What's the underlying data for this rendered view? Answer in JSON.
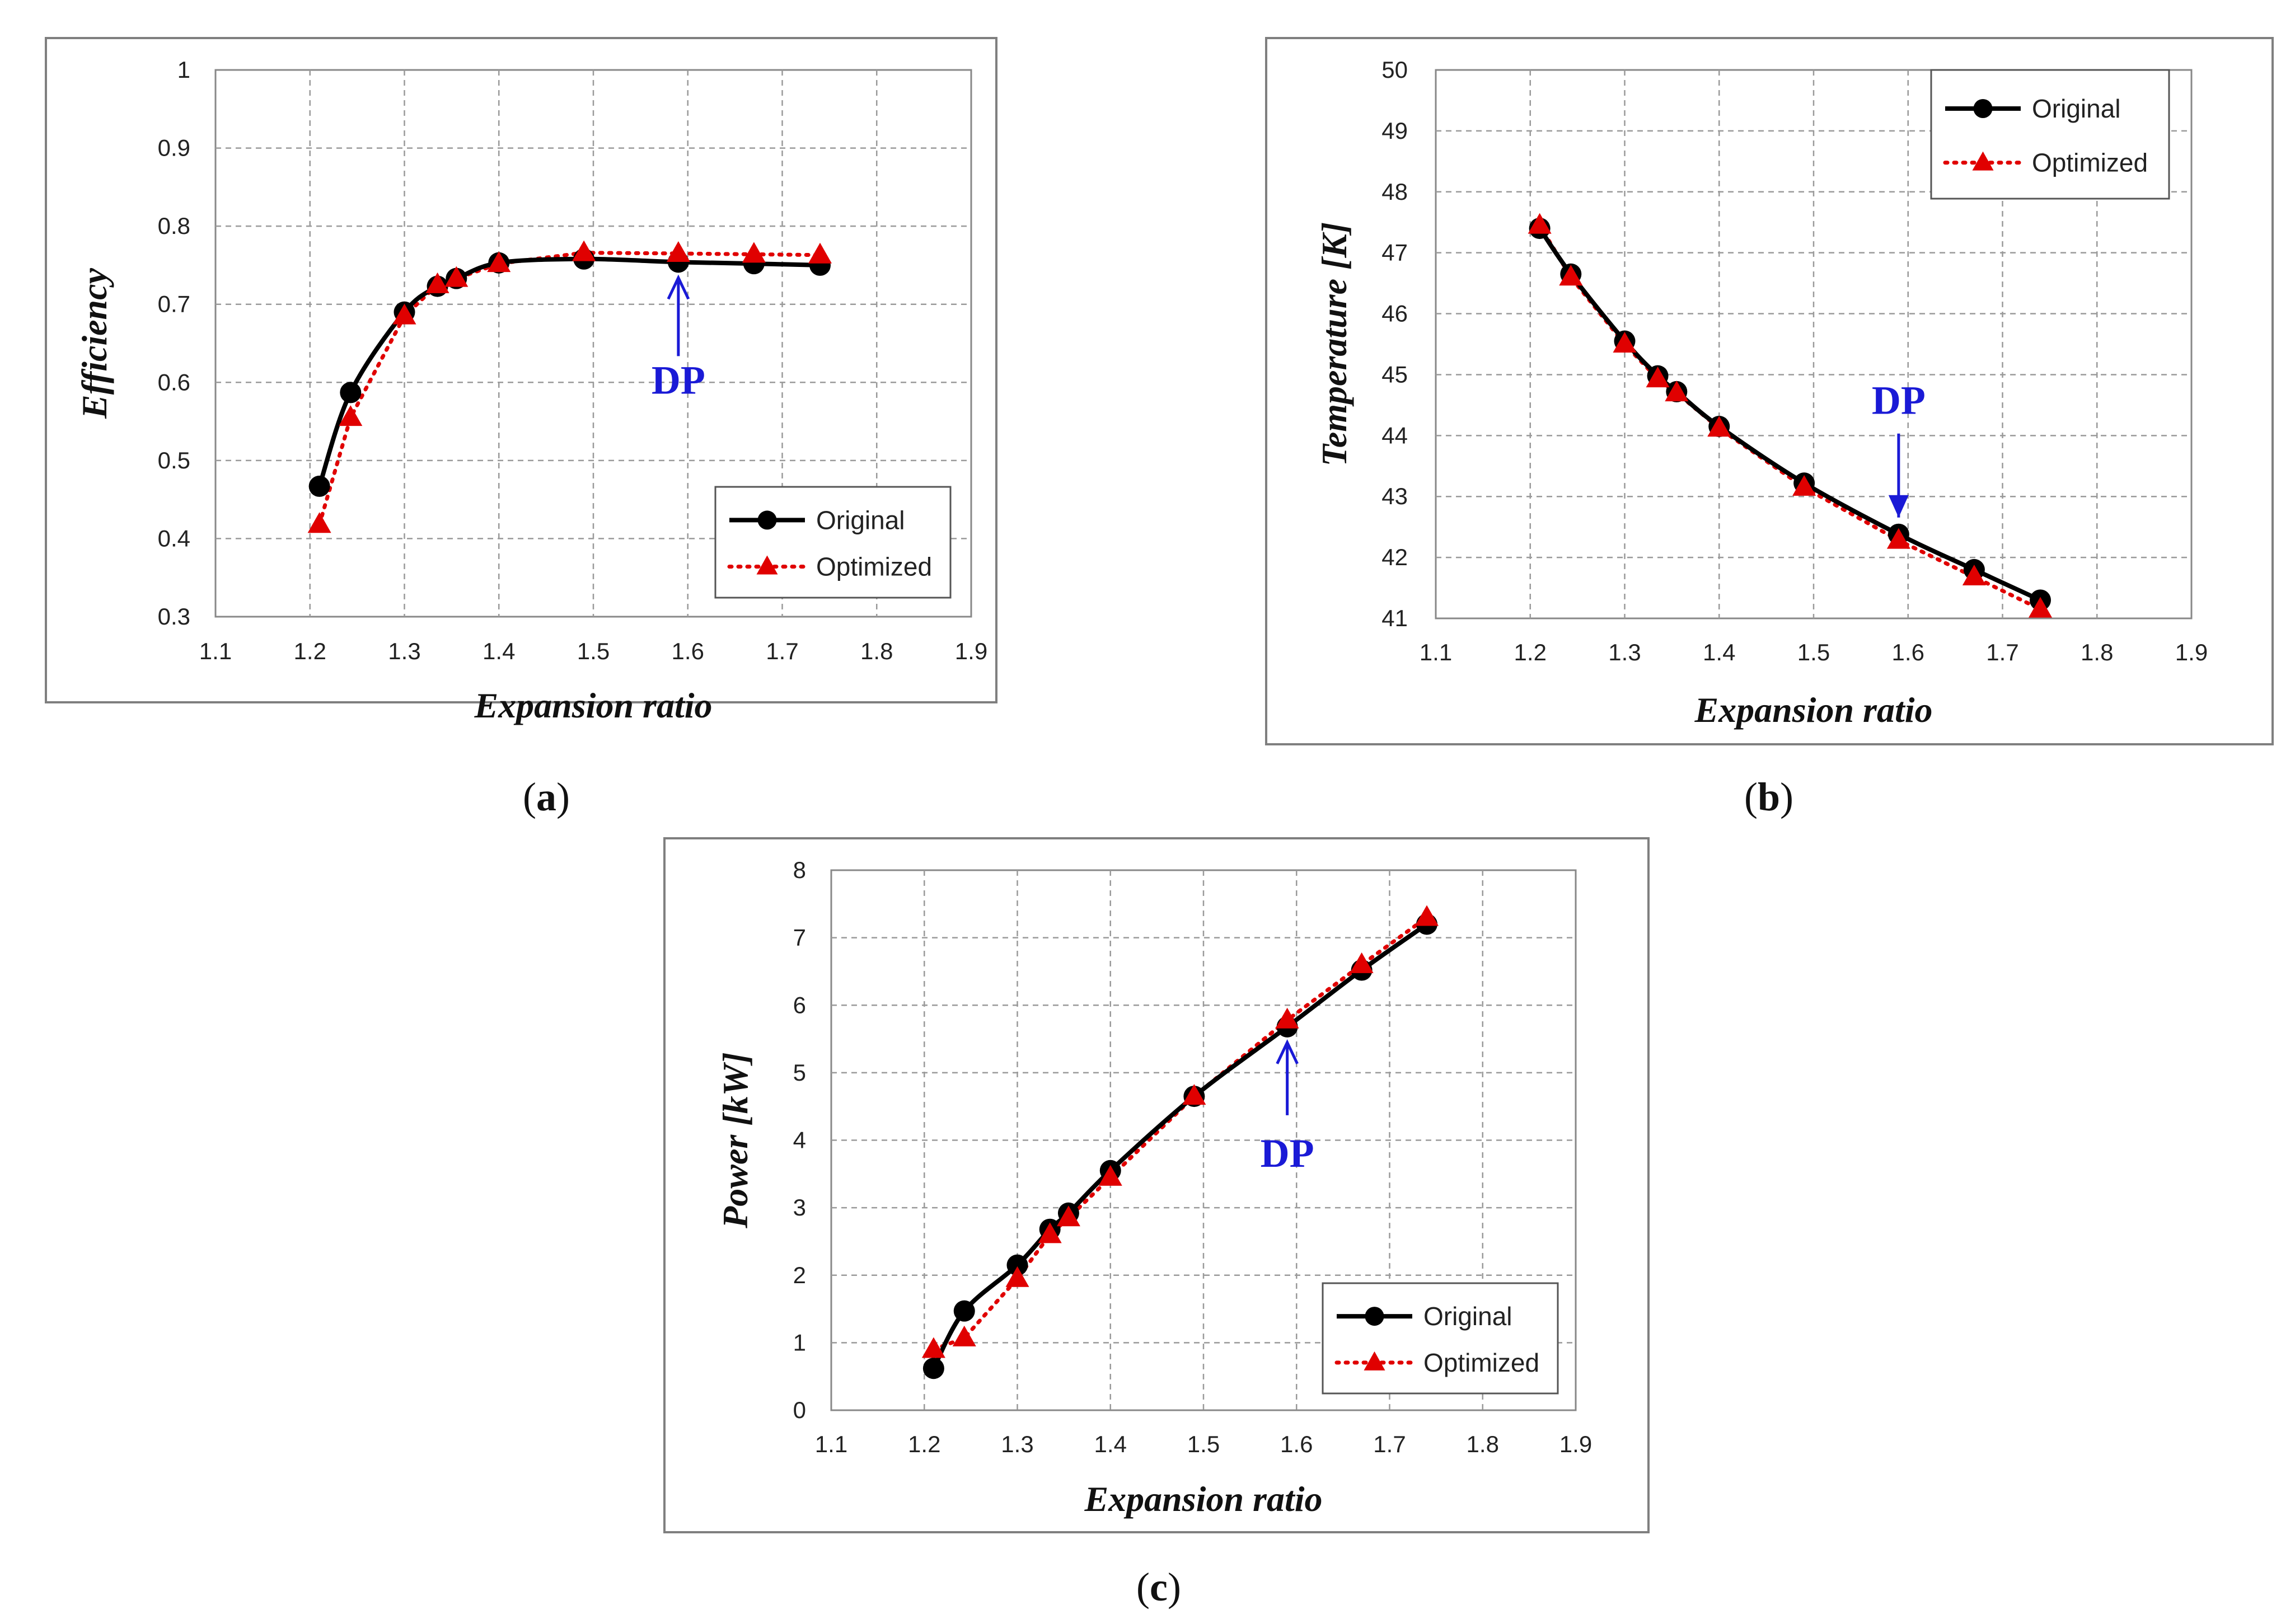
{
  "colors": {
    "original": "#000000",
    "optimized": "#e00000",
    "dp": "#1a1ad6",
    "grid": "#9a9a9a",
    "frame": "#7f7f7f"
  },
  "chart_data": [
    {
      "type": "line",
      "panel_label": "a",
      "xlabel": "Expansion ratio",
      "ylabel": "Efficiency",
      "xlim": [
        1.1,
        1.9
      ],
      "ylim": [
        0.3,
        1
      ],
      "x_ticks": [
        "1.1",
        "1.2",
        "1.3",
        "1.4",
        "1.5",
        "1.6",
        "1.7",
        "1.8",
        "1.9"
      ],
      "y_ticks": [
        "0.3",
        "0.4",
        "0.5",
        "0.6",
        "0.7",
        "0.8",
        "0.9",
        "1"
      ],
      "legend_position": "bottom-right",
      "series": [
        {
          "name": "Original",
          "x": [
            1.21,
            1.243,
            1.3,
            1.335,
            1.355,
            1.4,
            1.49,
            1.59,
            1.67,
            1.74
          ],
          "values": [
            0.467,
            0.587,
            0.69,
            0.723,
            0.733,
            0.753,
            0.758,
            0.754,
            0.752,
            0.75
          ]
        },
        {
          "name": "Optimized",
          "x": [
            1.21,
            1.243,
            1.3,
            1.335,
            1.355,
            1.4,
            1.49,
            1.59,
            1.67,
            1.74
          ],
          "values": [
            0.418,
            0.555,
            0.685,
            0.725,
            0.733,
            0.752,
            0.766,
            0.765,
            0.764,
            0.763
          ]
        }
      ],
      "annotation": {
        "text": "DP",
        "x": 1.59,
        "value": 0.754,
        "direction": "up"
      }
    },
    {
      "type": "line",
      "panel_label": "b",
      "xlabel": "Expansion ratio",
      "ylabel": "Temperature [K]",
      "xlim": [
        1.1,
        1.9
      ],
      "ylim": [
        41,
        50
      ],
      "x_ticks": [
        "1.1",
        "1.2",
        "1.3",
        "1.4",
        "1.5",
        "1.6",
        "1.7",
        "1.8",
        "1.9"
      ],
      "y_ticks": [
        "41",
        "42",
        "43",
        "44",
        "45",
        "46",
        "47",
        "48",
        "49",
        "50"
      ],
      "legend_position": "top-right",
      "series": [
        {
          "name": "Original",
          "x": [
            1.21,
            1.243,
            1.3,
            1.335,
            1.355,
            1.4,
            1.49,
            1.59,
            1.67,
            1.74
          ],
          "values": [
            47.4,
            46.65,
            45.55,
            44.98,
            44.72,
            44.15,
            43.22,
            42.38,
            41.8,
            41.3
          ]
        },
        {
          "name": "Optimized",
          "x": [
            1.21,
            1.243,
            1.3,
            1.335,
            1.355,
            1.4,
            1.49,
            1.59,
            1.67,
            1.74
          ],
          "values": [
            47.45,
            46.6,
            45.5,
            44.93,
            44.7,
            44.12,
            43.15,
            42.28,
            41.68,
            41.15
          ]
        }
      ],
      "annotation": {
        "text": "DP",
        "x": 1.59,
        "value": 42.38,
        "direction": "down"
      }
    },
    {
      "type": "line",
      "panel_label": "c",
      "xlabel": "Expansion ratio",
      "ylabel": "Power [kW]",
      "xlim": [
        1.1,
        1.9
      ],
      "ylim": [
        0,
        8
      ],
      "x_ticks": [
        "1.1",
        "1.2",
        "1.3",
        "1.4",
        "1.5",
        "1.6",
        "1.7",
        "1.8",
        "1.9"
      ],
      "y_ticks": [
        "0",
        "1",
        "2",
        "3",
        "4",
        "5",
        "6",
        "7",
        "8"
      ],
      "legend_position": "bottom-right",
      "series": [
        {
          "name": "Original",
          "x": [
            1.21,
            1.243,
            1.3,
            1.335,
            1.355,
            1.4,
            1.49,
            1.59,
            1.67,
            1.74
          ],
          "values": [
            0.62,
            1.47,
            2.15,
            2.68,
            2.92,
            3.55,
            4.65,
            5.68,
            6.52,
            7.2
          ]
        },
        {
          "name": "Optimized",
          "x": [
            1.21,
            1.243,
            1.3,
            1.335,
            1.355,
            1.4,
            1.49,
            1.59,
            1.67,
            1.74
          ],
          "values": [
            0.9,
            1.07,
            1.95,
            2.6,
            2.85,
            3.45,
            4.65,
            5.78,
            6.6,
            7.3
          ]
        }
      ],
      "annotation": {
        "text": "DP",
        "x": 1.59,
        "value": 5.68,
        "direction": "up"
      }
    }
  ]
}
